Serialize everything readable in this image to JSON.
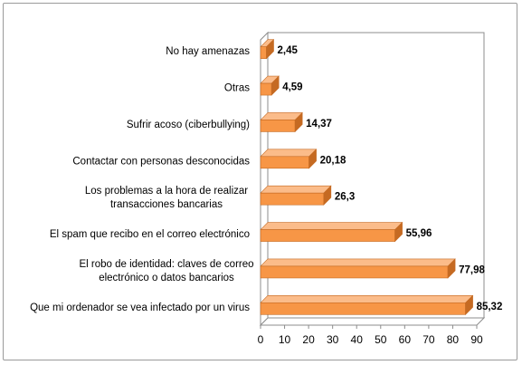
{
  "chart_data": {
    "type": "bar",
    "orientation": "horizontal",
    "style": "3d",
    "categories": [
      "No hay amenazas",
      "Otras",
      "Sufrir acoso (ciberbullying)",
      "Contactar con personas desconocidas",
      "Los problemas a la hora de realizar transacciones bancarias",
      "El spam que recibo en el correo electrónico",
      "El robo de identidad: claves de correo electrónico o datos bancarios",
      "Que mi ordenador se vea infectado por un virus"
    ],
    "category_lines": [
      [
        "No hay amenazas"
      ],
      [
        "Otras"
      ],
      [
        "Sufrir acoso (ciberbullying)"
      ],
      [
        "Contactar con personas desconocidas"
      ],
      [
        "Los problemas a la hora de realizar",
        "transacciones bancarias"
      ],
      [
        "El spam que recibo en el correo electrónico"
      ],
      [
        "El robo de identidad: claves de correo",
        "electrónico o datos bancarios"
      ],
      [
        "Que mi ordenador se vea infectado por un virus"
      ]
    ],
    "values": [
      2.45,
      4.59,
      14.37,
      20.18,
      26.3,
      55.96,
      77.98,
      85.32
    ],
    "value_labels": [
      "2,45",
      "4,59",
      "14,37",
      "20,18",
      "26,3",
      "55,96",
      "77,98",
      "85,32"
    ],
    "xlim": [
      0,
      90
    ],
    "x_ticks": [
      0,
      10,
      20,
      30,
      40,
      50,
      60,
      70,
      80,
      90
    ],
    "grid": false,
    "legend": "none",
    "colors": {
      "bar": "#F79646",
      "bar_top": "#FBBC8A",
      "bar_side": "#C56A22",
      "wall": "#FFFFFF",
      "wall_border": "#8C8C8C",
      "axis": "#8C8C8C"
    }
  }
}
